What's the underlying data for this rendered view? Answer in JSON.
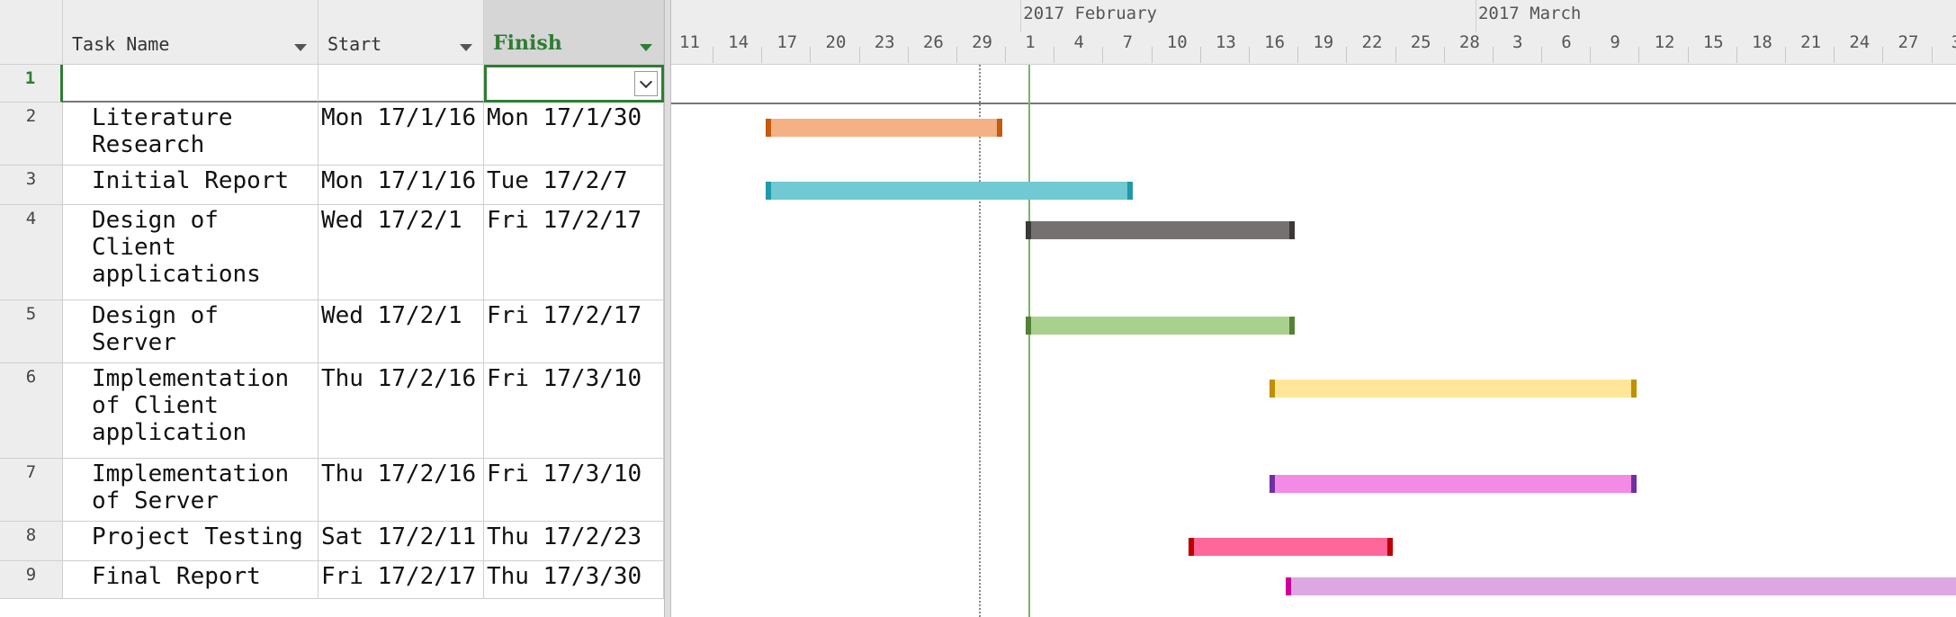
{
  "columns": {
    "task_name": "Task Name",
    "start": "Start",
    "finish": "Finish"
  },
  "rows": [
    {
      "num": "1",
      "name": "",
      "start": "",
      "finish": ""
    },
    {
      "num": "2",
      "name": "Literature\nResearch",
      "start": "Mon 17/1/16",
      "finish": "Mon 17/1/30"
    },
    {
      "num": "3",
      "name": "Initial Report",
      "start": "Mon 17/1/16",
      "finish": "Tue 17/2/7"
    },
    {
      "num": "4",
      "name": "Design of\nClient\napplications",
      "start": "Wed 17/2/1",
      "finish": "Fri 17/2/17"
    },
    {
      "num": "5",
      "name": "Design of\nServer",
      "start": "Wed 17/2/1",
      "finish": "Fri 17/2/17"
    },
    {
      "num": "6",
      "name": "Implementation\nof Client\napplication",
      "start": "Thu 17/2/16",
      "finish": "Fri 17/3/10"
    },
    {
      "num": "7",
      "name": "Implementation\nof Server",
      "start": "Thu 17/2/16",
      "finish": "Fri 17/3/10"
    },
    {
      "num": "8",
      "name": "Project Testing",
      "start": "Sat 17/2/11",
      "finish": "Thu 17/2/23"
    },
    {
      "num": "9",
      "name": "Final Report",
      "start": "Fri 17/2/17",
      "finish": "Thu 17/3/30"
    }
  ],
  "timeline": {
    "months": [
      "2017 February",
      "2017 March"
    ],
    "ticks": [
      "11",
      "14",
      "17",
      "20",
      "23",
      "26",
      "29",
      "1",
      "4",
      "7",
      "10",
      "13",
      "16",
      "19",
      "22",
      "25",
      "28",
      "3",
      "6",
      "9",
      "12",
      "15",
      "18",
      "21",
      "24",
      "27",
      "3"
    ]
  },
  "bar_colors": [
    {
      "fill": "#f4b183",
      "cap": "#c55a11"
    },
    {
      "fill": "#70c9d3",
      "cap": "#1f9aa8"
    },
    {
      "fill": "#767171",
      "cap": "#3b3838"
    },
    {
      "fill": "#a9d18e",
      "cap": "#548235"
    },
    {
      "fill": "#ffe699",
      "cap": "#bf9000"
    },
    {
      "fill": "#f38ae6",
      "cap": "#7030a0"
    },
    {
      "fill": "#ff6699",
      "cap": "#c00000"
    },
    {
      "fill": "#dda8e2",
      "cap": "#cc0099"
    }
  ]
}
